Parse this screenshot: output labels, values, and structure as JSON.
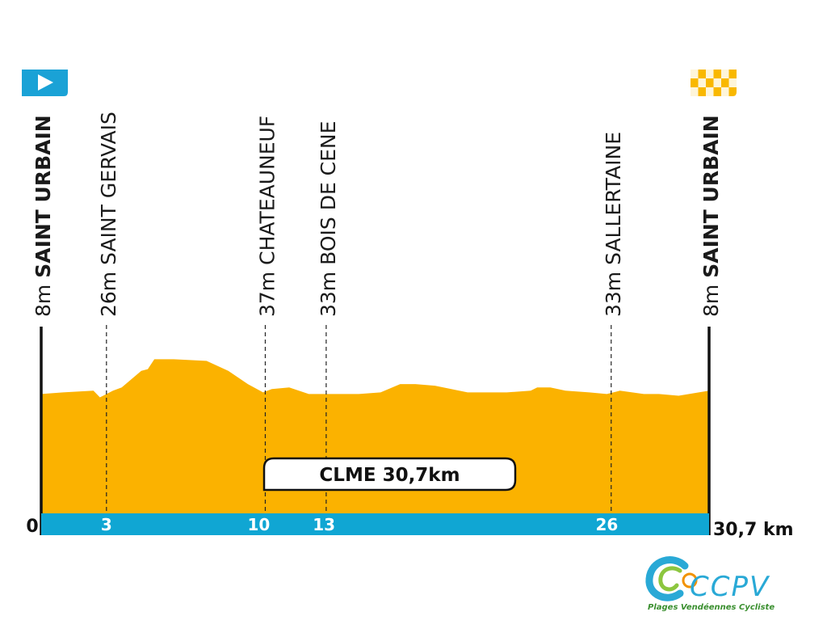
{
  "chart_data": {
    "type": "area",
    "total_label": "CLME 30,7km",
    "x_start_label": "0",
    "x_end_label": "30,7 km",
    "x_range_km": [
      0,
      30.7
    ],
    "km_ticks": [
      3,
      10,
      13,
      26
    ],
    "places": [
      {
        "km": 0,
        "elevation": "8m",
        "name": "SAINT URBAIN",
        "emphasis": true,
        "type": "start"
      },
      {
        "km": 3,
        "elevation": "26m",
        "name": "SAINT GERVAIS",
        "emphasis": false,
        "type": "via"
      },
      {
        "km": 10.3,
        "elevation": "37m",
        "name": "CHATEAUNEUF",
        "emphasis": false,
        "type": "via"
      },
      {
        "km": 13.1,
        "elevation": "33m",
        "name": "BOIS DE CENE",
        "emphasis": false,
        "type": "via"
      },
      {
        "km": 26.2,
        "elevation": "33m",
        "name": "SALLERTAINE",
        "emphasis": false,
        "type": "via"
      },
      {
        "km": 30.7,
        "elevation": "8m",
        "name": "SAINT URBAIN",
        "emphasis": true,
        "type": "finish"
      }
    ],
    "profile": {
      "unit": "relative elevation (0 = baseline, 1 = highest point)",
      "x": [
        0,
        1.0,
        2.4,
        2.7,
        3.3,
        3.7,
        4.6,
        4.9,
        5.2,
        6.1,
        7.6,
        8.6,
        9.5,
        10.2,
        10.6,
        11.4,
        12.3,
        13.2,
        14.6,
        15.6,
        16.5,
        17.2,
        18.1,
        19.6,
        21.4,
        22.5,
        22.8,
        23.4,
        24.1,
        25.2,
        26.0,
        26.6,
        27.7,
        28.4,
        29.3,
        30.7
      ],
      "y": [
        0.72,
        0.73,
        0.74,
        0.7,
        0.74,
        0.76,
        0.86,
        0.87,
        0.93,
        0.93,
        0.92,
        0.86,
        0.78,
        0.73,
        0.75,
        0.76,
        0.72,
        0.72,
        0.72,
        0.73,
        0.78,
        0.78,
        0.77,
        0.73,
        0.73,
        0.74,
        0.76,
        0.76,
        0.74,
        0.73,
        0.72,
        0.74,
        0.72,
        0.72,
        0.71,
        0.74
      ]
    },
    "colors": {
      "profile_fill": "#fbb200",
      "distance_bar": "#10a6d3",
      "start_flag": "#1aa2d6",
      "finish_flag": "#f9b800"
    }
  },
  "logo": {
    "brand": "CCPV",
    "tagline": "Plages Vendéennes Cycliste"
  }
}
